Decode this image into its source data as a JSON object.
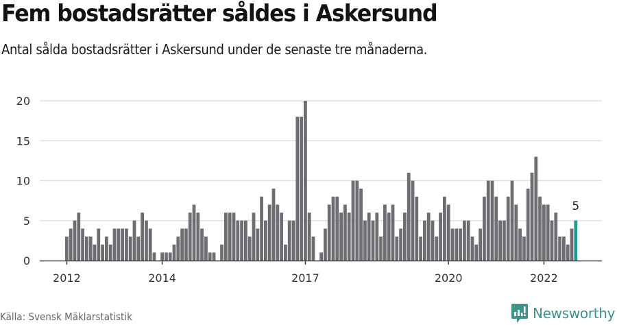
{
  "header": {
    "title": "Fem bostadsrätter såldes i Askersund",
    "subtitle": "Antal sålda bostadsrätter i Askersund under de senaste tre månaderna."
  },
  "footer": {
    "source": "Källa: Svensk Mäklarstatistik",
    "brand": "Newsworthy"
  },
  "colors": {
    "bar": "#6e6d72",
    "highlight": "#14a195",
    "grid": "#e0e0e0",
    "axis": "#444444",
    "brand": "#3c948b"
  },
  "chart_data": {
    "type": "bar",
    "title": "Fem bostadsrätter såldes i Askersund",
    "subtitle": "Antal sålda bostadsrätter i Askersund under de senaste tre månaderna.",
    "xlabel": "",
    "ylabel": "",
    "ylim": [
      0,
      20
    ],
    "yticks": [
      0,
      5,
      10,
      15,
      20
    ],
    "xtick_labels": [
      {
        "label": "2012",
        "index": 0
      },
      {
        "label": "2014",
        "index": 24
      },
      {
        "label": "2017",
        "index": 60
      },
      {
        "label": "2020",
        "index": 96
      },
      {
        "label": "2022",
        "index": 120
      }
    ],
    "grid": true,
    "start_month": "2012-01",
    "end_month": "2022-09",
    "annotation": {
      "label": "5",
      "index": 128
    },
    "highlight_index": 128,
    "values": [
      3,
      4,
      5,
      6,
      4,
      3,
      3,
      2,
      4,
      2,
      3,
      2,
      4,
      4,
      4,
      4,
      3,
      5,
      3,
      6,
      5,
      4,
      1,
      0,
      1,
      1,
      1,
      2,
      3,
      4,
      4,
      6,
      7,
      6,
      4,
      3,
      1,
      1,
      0,
      2,
      6,
      6,
      6,
      5,
      5,
      5,
      3,
      6,
      4,
      8,
      5,
      7,
      9,
      7,
      6,
      2,
      5,
      5,
      18,
      18,
      20,
      6,
      3,
      0,
      1,
      4,
      7,
      8,
      8,
      6,
      7,
      6,
      10,
      10,
      9,
      5,
      6,
      5,
      6,
      3,
      7,
      6,
      7,
      3,
      4,
      6,
      11,
      10,
      8,
      3,
      5,
      6,
      5,
      3,
      6,
      8,
      7,
      4,
      4,
      4,
      5,
      5,
      3,
      2,
      4,
      8,
      10,
      10,
      8,
      5,
      5,
      8,
      10,
      7,
      4,
      3,
      9,
      11,
      13,
      8,
      7,
      7,
      5,
      6,
      3,
      3,
      2,
      4,
      5
    ]
  }
}
